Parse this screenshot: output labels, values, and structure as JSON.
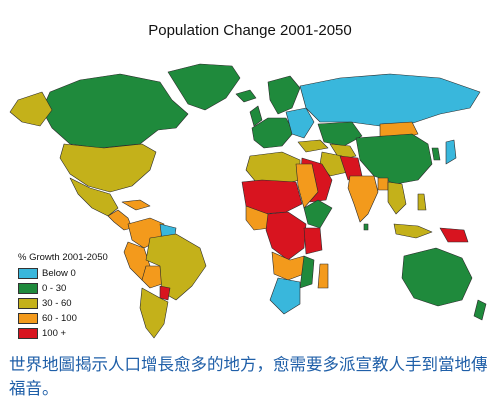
{
  "title": "Population Change 2001-2050",
  "legend": {
    "title": "% Growth 2001-2050",
    "items": [
      {
        "label": "Below 0",
        "color": "#39b7dc"
      },
      {
        "label": "0 - 30",
        "color": "#1f8a3c"
      },
      {
        "label": "30 - 60",
        "color": "#c4b11a"
      },
      {
        "label": "60 - 100",
        "color": "#f39a1c"
      },
      {
        "label": "100 +",
        "color": "#d8141f"
      }
    ]
  },
  "caption": "世界地圖揭示人口增長愈多的地方，愈需要多派宣教人手到當地傳福音。"
}
